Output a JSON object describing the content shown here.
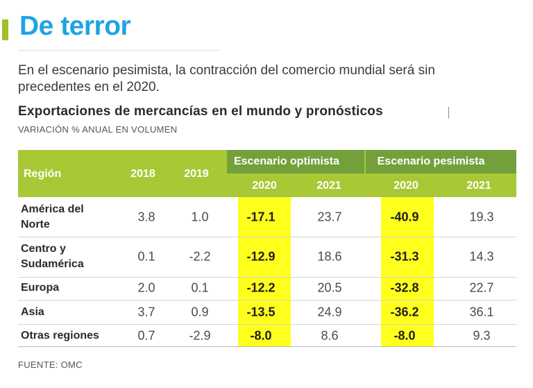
{
  "headline": "De terror",
  "intro": "En el escenario pesimista, la contracción del comercio mundial será sin precedentes en el 2020.",
  "chart_data": {
    "type": "table",
    "title": "Exportaciones de mercancías en el mundo y pronósticos",
    "subtitle": "VARIACIÓN % ANUAL EN VOLUMEN",
    "columns": {
      "region": "Región",
      "y2018": "2018",
      "y2019": "2019",
      "optimistic": "Escenario optimista",
      "pessimistic": "Escenario pesimista",
      "opt2020": "2020",
      "opt2021": "2021",
      "pes2020": "2020",
      "pes2021": "2021"
    },
    "rows": [
      {
        "region_lines": [
          "América del",
          "Norte"
        ],
        "values": [
          "3.8",
          "1.0",
          "-17.1",
          "23.7",
          "-40.9",
          "19.3"
        ]
      },
      {
        "region_lines": [
          "Centro y",
          "Sudamérica"
        ],
        "values": [
          "0.1",
          "-2.2",
          "-12.9",
          "18.6",
          "-31.3",
          "14.3"
        ]
      },
      {
        "region_lines": [
          "Europa"
        ],
        "values": [
          "2.0",
          "0.1",
          "-12.2",
          "20.5",
          "-32.8",
          "22.7"
        ]
      },
      {
        "region_lines": [
          "Asia"
        ],
        "values": [
          "3.7",
          "0.9",
          "-13.5",
          "24.9",
          "-36.2",
          "36.1"
        ]
      },
      {
        "region_lines": [
          "Otras regiones"
        ],
        "values": [
          "0.7",
          "-2.9",
          "-8.0",
          "8.6",
          "-8.0",
          "9.3"
        ]
      }
    ],
    "highlight_columns": [
      "opt2020",
      "pes2020"
    ]
  },
  "source": "FUENTE: OMC",
  "colors": {
    "headline": "#1fa3e3",
    "header": "#a9c836",
    "scenario_band": "#74a03c",
    "highlight": "#ffff1e"
  }
}
